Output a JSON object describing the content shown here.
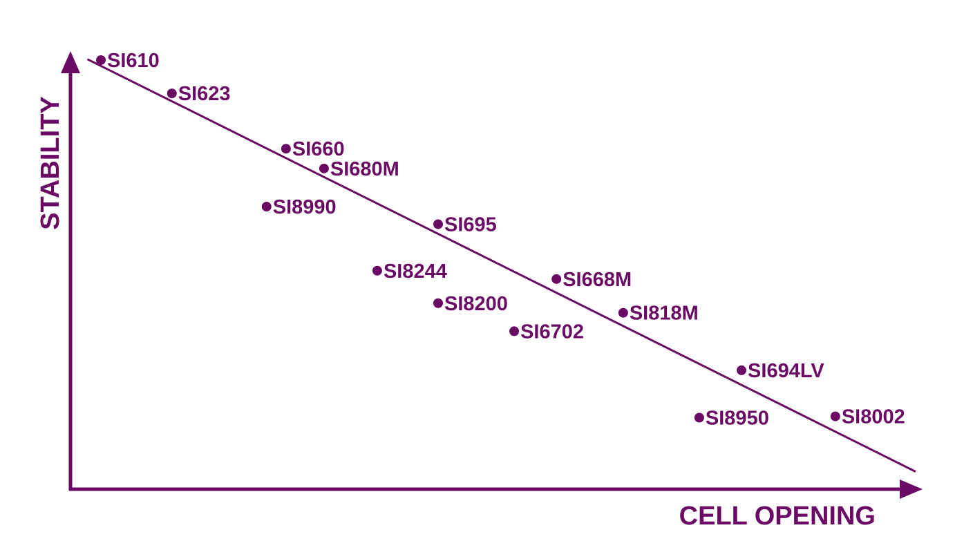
{
  "chart_data": {
    "type": "scatter",
    "title": "",
    "xlabel": "CELL OPENING",
    "ylabel": "STABILITY",
    "xlim": [
      0,
      100
    ],
    "ylim": [
      0,
      100
    ],
    "grid": false,
    "legend": "none",
    "axis_ticks": false,
    "color": "#6a0a64",
    "trend_line": {
      "from": [
        2,
        98
      ],
      "to": [
        100,
        4
      ]
    },
    "points": [
      {
        "label": "SI610",
        "x": 3.6,
        "y": 97.8
      },
      {
        "label": "SI623",
        "x": 12.0,
        "y": 90.2
      },
      {
        "label": "SI660",
        "x": 25.5,
        "y": 77.6
      },
      {
        "label": "SI680M",
        "x": 30.0,
        "y": 73.1
      },
      {
        "label": "SI8990",
        "x": 23.2,
        "y": 64.4
      },
      {
        "label": "SI695",
        "x": 43.5,
        "y": 60.4
      },
      {
        "label": "SI8244",
        "x": 36.3,
        "y": 49.8
      },
      {
        "label": "SI668M",
        "x": 57.5,
        "y": 47.9
      },
      {
        "label": "SI8200",
        "x": 43.5,
        "y": 42.4
      },
      {
        "label": "SI818M",
        "x": 65.4,
        "y": 40.2
      },
      {
        "label": "SI6702",
        "x": 52.5,
        "y": 36.0
      },
      {
        "label": "SI694LV",
        "x": 79.4,
        "y": 27.1
      },
      {
        "label": "SI8950",
        "x": 74.4,
        "y": 16.3
      },
      {
        "label": "SI8002",
        "x": 90.5,
        "y": 16.6
      }
    ]
  }
}
